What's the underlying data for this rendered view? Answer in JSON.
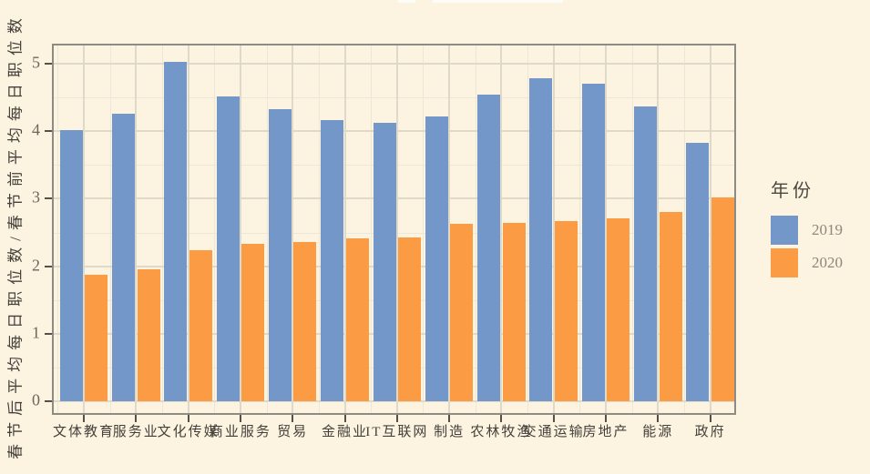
{
  "chart_data": {
    "type": "bar",
    "title": "",
    "xlabel": "",
    "ylabel": "春节后平均每日职位数/春节前平均每日职位数",
    "categories": [
      "文体教育",
      "服务业",
      "文化传媒",
      "商业服务",
      "贸易",
      "金融业",
      "IT互联网",
      "制造",
      "农林牧渔",
      "交通运输",
      "房地产",
      "能源",
      "政府"
    ],
    "series": [
      {
        "name": "2019",
        "color": "#7297C8",
        "values": [
          4.01,
          4.26,
          5.03,
          4.51,
          4.32,
          4.17,
          4.12,
          4.22,
          4.54,
          4.78,
          4.7,
          4.37,
          3.83
        ]
      },
      {
        "name": "2020",
        "color": "#FB9C44",
        "values": [
          1.87,
          1.96,
          2.24,
          2.33,
          2.36,
          2.41,
          2.42,
          2.63,
          2.64,
          2.67,
          2.71,
          2.8,
          3.02
        ]
      }
    ],
    "ylim": [
      0,
      5.3
    ],
    "yticks": [
      0,
      1,
      2,
      3,
      4,
      5
    ],
    "grid": "major+minor",
    "legend_title": "年份",
    "legend_position": "right"
  },
  "colors": {
    "background": "#FCF4E1",
    "panel_border": "#8C8C84",
    "grid_major": "#DFD9C9",
    "grid_minor": "#EDE7D8",
    "axis_tick_text": "#6E6758",
    "label_text": "#45413A",
    "legend_label_text": "#8E887B",
    "tick_mark": "#55514A",
    "series_2019": "#7297C8",
    "series_2020": "#FB9C44"
  }
}
